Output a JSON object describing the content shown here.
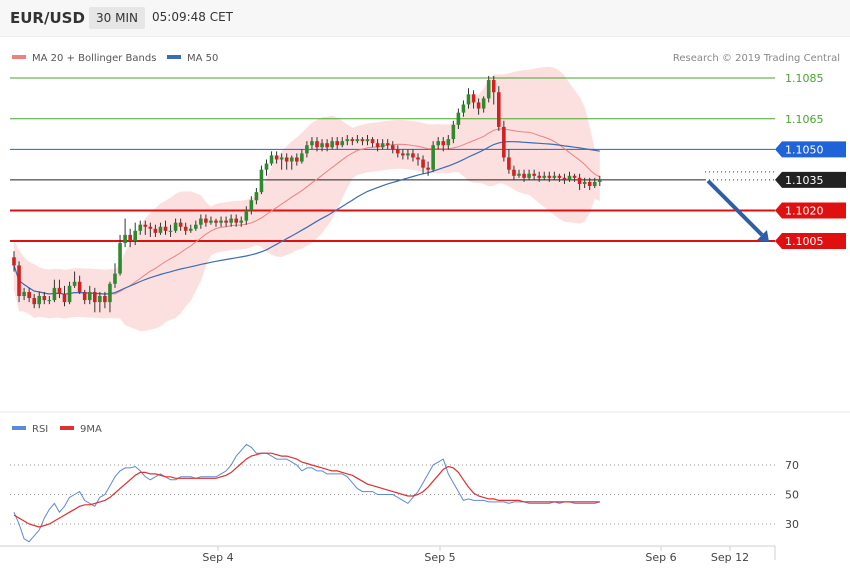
{
  "header": {
    "symbol": "EUR/USD",
    "timeframe": "30 MIN",
    "time": "05:09:48 CET"
  },
  "credit": "Research © 2019 Trading Central",
  "chart_data": [
    {
      "type": "candlestick",
      "legend": [
        {
          "name": "MA 20 + Bollinger Bands",
          "color": "#f08080"
        },
        {
          "name": "MA 50",
          "color": "#3b6db3"
        }
      ],
      "legend_placement": "top-left",
      "y_range": [
        1.097,
        1.109
      ],
      "grid": false,
      "levels": [
        {
          "value": 1.1085,
          "label": "1.1085",
          "color": "#4aa52e",
          "style": "plain"
        },
        {
          "value": 1.1065,
          "label": "1.1065",
          "color": "#4aa52e",
          "style": "plain"
        },
        {
          "value": 1.105,
          "label": "1.1050",
          "color": "#1e63d8",
          "style": "badge"
        },
        {
          "value": 1.1035,
          "label": "1.1035",
          "color": "#222222",
          "style": "badge"
        },
        {
          "value": 1.102,
          "label": "1.1020",
          "color": "#e01010",
          "style": "badge"
        },
        {
          "value": 1.1005,
          "label": "1.1005",
          "color": "#e01010",
          "style": "badge"
        }
      ],
      "x_ticks": [
        "Sep 4",
        "Sep 5",
        "Sep 6",
        "Sep 12"
      ],
      "candles": [
        [
          1.0997,
          1.0993,
          1.1,
          1.099
        ],
        [
          1.0993,
          1.0978,
          1.0995,
          1.0975
        ],
        [
          1.0978,
          1.098,
          1.0982,
          1.0976
        ],
        [
          1.098,
          1.0977,
          1.0982,
          1.0975
        ],
        [
          1.0977,
          1.0974,
          1.0979,
          1.0972
        ],
        [
          1.0974,
          1.0978,
          1.098,
          1.0972
        ],
        [
          1.0978,
          1.0976,
          1.098,
          1.0974
        ],
        [
          1.0976,
          1.0976,
          1.0978,
          1.0974
        ],
        [
          1.0976,
          1.0982,
          1.0986,
          1.0975
        ],
        [
          1.0982,
          1.0979,
          1.0986,
          1.0977
        ],
        [
          1.0979,
          1.0975,
          1.0983,
          1.0973
        ],
        [
          1.0975,
          1.0983,
          1.0985,
          1.0974
        ],
        [
          1.0983,
          1.0985,
          1.099,
          1.0982
        ],
        [
          1.0985,
          1.098,
          1.0988,
          1.0979
        ],
        [
          1.098,
          1.0976,
          1.0981,
          1.0974
        ],
        [
          1.0976,
          1.098,
          1.0983,
          1.0974
        ],
        [
          1.098,
          1.0975,
          1.0982,
          1.097
        ],
        [
          1.0975,
          1.0978,
          1.098,
          1.097
        ],
        [
          1.0978,
          1.0975,
          1.098,
          1.0972
        ],
        [
          1.0975,
          1.0984,
          1.0985,
          1.097
        ],
        [
          1.0984,
          1.0989,
          1.0994,
          1.0982
        ],
        [
          1.0989,
          1.1004,
          1.1008,
          1.0988
        ],
        [
          1.1004,
          1.1008,
          1.1016,
          1.1002
        ],
        [
          1.1008,
          1.1005,
          1.1011,
          1.1002
        ],
        [
          1.1005,
          1.101,
          1.1014,
          1.1003
        ],
        [
          1.101,
          1.1013,
          1.1015,
          1.1008
        ],
        [
          1.1013,
          1.1012,
          1.1015,
          1.1008
        ],
        [
          1.1012,
          1.1011,
          1.1014,
          1.1007
        ],
        [
          1.1011,
          1.1009,
          1.1013,
          1.1007
        ],
        [
          1.1009,
          1.1012,
          1.1014,
          1.1008
        ],
        [
          1.1012,
          1.101,
          1.1015,
          1.1008
        ],
        [
          1.101,
          1.101,
          1.1013,
          1.1007
        ],
        [
          1.101,
          1.1014,
          1.1016,
          1.1009
        ],
        [
          1.1014,
          1.1012,
          1.1016,
          1.101
        ],
        [
          1.1012,
          1.101,
          1.1014,
          1.1008
        ],
        [
          1.101,
          1.1011,
          1.1013,
          1.1009
        ],
        [
          1.1011,
          1.1013,
          1.1015,
          1.101
        ],
        [
          1.1013,
          1.1016,
          1.1018,
          1.1011
        ],
        [
          1.1016,
          1.1014,
          1.1018,
          1.1012
        ],
        [
          1.1014,
          1.1015,
          1.1017,
          1.1013
        ],
        [
          1.1015,
          1.1014,
          1.1016,
          1.1012
        ],
        [
          1.1014,
          1.1015,
          1.1017,
          1.1012
        ],
        [
          1.1015,
          1.1014,
          1.1017,
          1.1012
        ],
        [
          1.1014,
          1.1016,
          1.1018,
          1.1012
        ],
        [
          1.1016,
          1.1014,
          1.1018,
          1.1012
        ],
        [
          1.1014,
          1.1015,
          1.1017,
          1.1012
        ],
        [
          1.1015,
          1.102,
          1.1022,
          1.1013
        ],
        [
          1.102,
          1.1025,
          1.1027,
          1.1018
        ],
        [
          1.1025,
          1.1029,
          1.1031,
          1.1023
        ],
        [
          1.1029,
          1.104,
          1.1042,
          1.1028
        ],
        [
          1.104,
          1.1043,
          1.1045,
          1.1037
        ],
        [
          1.1043,
          1.1047,
          1.1049,
          1.1042
        ],
        [
          1.1047,
          1.1045,
          1.1049,
          1.1043
        ],
        [
          1.1045,
          1.1046,
          1.1048,
          1.104
        ],
        [
          1.1046,
          1.1044,
          1.1048,
          1.104
        ],
        [
          1.1044,
          1.1046,
          1.1047,
          1.104
        ],
        [
          1.1046,
          1.1044,
          1.1048,
          1.1042
        ],
        [
          1.1044,
          1.1048,
          1.105,
          1.1043
        ],
        [
          1.1048,
          1.1052,
          1.1054,
          1.1046
        ],
        [
          1.1052,
          1.1054,
          1.1056,
          1.105
        ],
        [
          1.1054,
          1.1051,
          1.1056,
          1.1049
        ],
        [
          1.1051,
          1.1053,
          1.1055,
          1.1049
        ],
        [
          1.1053,
          1.1051,
          1.1055,
          1.1049
        ],
        [
          1.1051,
          1.1054,
          1.1056,
          1.105
        ],
        [
          1.1054,
          1.1052,
          1.1056,
          1.105
        ],
        [
          1.1052,
          1.1054,
          1.1056,
          1.1051
        ],
        [
          1.1054,
          1.1055,
          1.1057,
          1.1052
        ],
        [
          1.1055,
          1.1054,
          1.1056,
          1.1052
        ],
        [
          1.1054,
          1.1055,
          1.1057,
          1.1053
        ],
        [
          1.1055,
          1.1054,
          1.1056,
          1.1052
        ],
        [
          1.1054,
          1.1055,
          1.1057,
          1.1052
        ],
        [
          1.1055,
          1.1053,
          1.1056,
          1.1051
        ],
        [
          1.1053,
          1.1051,
          1.1055,
          1.1049
        ],
        [
          1.1051,
          1.1053,
          1.1055,
          1.105
        ],
        [
          1.1053,
          1.1052,
          1.1055,
          1.105
        ],
        [
          1.1052,
          1.105,
          1.1054,
          1.1048
        ],
        [
          1.105,
          1.1048,
          1.1052,
          1.1046
        ],
        [
          1.1048,
          1.1047,
          1.105,
          1.1045
        ],
        [
          1.1047,
          1.1048,
          1.105,
          1.1045
        ],
        [
          1.1048,
          1.1046,
          1.105,
          1.1044
        ],
        [
          1.1046,
          1.1045,
          1.1048,
          1.1042
        ],
        [
          1.1045,
          1.1041,
          1.1047,
          1.1038
        ],
        [
          1.1041,
          1.104,
          1.1044,
          1.1037
        ],
        [
          1.104,
          1.1052,
          1.1054,
          1.1039
        ],
        [
          1.1052,
          1.1054,
          1.1056,
          1.105
        ],
        [
          1.1054,
          1.1052,
          1.1056,
          1.1049
        ],
        [
          1.1052,
          1.1055,
          1.1057,
          1.105
        ],
        [
          1.1055,
          1.1062,
          1.1064,
          1.1053
        ],
        [
          1.1062,
          1.1068,
          1.107,
          1.106
        ],
        [
          1.1068,
          1.1072,
          1.1074,
          1.1066
        ],
        [
          1.1072,
          1.1077,
          1.108,
          1.107
        ],
        [
          1.1077,
          1.1073,
          1.1079,
          1.107
        ],
        [
          1.1073,
          1.107,
          1.1075,
          1.1067
        ],
        [
          1.107,
          1.1075,
          1.1076,
          1.1068
        ],
        [
          1.1075,
          1.1084,
          1.1086,
          1.1073
        ],
        [
          1.1084,
          1.1078,
          1.1086,
          1.1072
        ],
        [
          1.1078,
          1.1061,
          1.1081,
          1.1059
        ],
        [
          1.1061,
          1.1046,
          1.1064,
          1.1044
        ],
        [
          1.1046,
          1.104,
          1.105,
          1.1038
        ],
        [
          1.104,
          1.1037,
          1.1042,
          1.1035
        ],
        [
          1.1037,
          1.1038,
          1.104,
          1.1036
        ],
        [
          1.1038,
          1.1036,
          1.104,
          1.1034
        ],
        [
          1.1036,
          1.1038,
          1.104,
          1.1035
        ],
        [
          1.1038,
          1.1037,
          1.104,
          1.1035
        ],
        [
          1.1037,
          1.1036,
          1.1039,
          1.1034
        ],
        [
          1.1036,
          1.1037,
          1.1039,
          1.1035
        ],
        [
          1.1037,
          1.1036,
          1.1039,
          1.1034
        ],
        [
          1.1036,
          1.1037,
          1.1039,
          1.1035
        ],
        [
          1.1037,
          1.1036,
          1.1038,
          1.1034
        ],
        [
          1.1036,
          1.1035,
          1.1038,
          1.1033
        ],
        [
          1.1035,
          1.1037,
          1.1039,
          1.1034
        ],
        [
          1.1037,
          1.1036,
          1.1038,
          1.1034
        ],
        [
          1.1036,
          1.1033,
          1.1038,
          1.103
        ],
        [
          1.1033,
          1.1034,
          1.1036,
          1.1031
        ],
        [
          1.1034,
          1.1032,
          1.1036,
          1.103
        ],
        [
          1.1032,
          1.1034,
          1.1036,
          1.1031
        ],
        [
          1.1034,
          1.1035,
          1.1037,
          1.1032
        ]
      ],
      "projection": {
        "from": 1.1035,
        "to": 1.1005
      }
    },
    {
      "type": "line",
      "legend": [
        {
          "name": "RSI",
          "color": "#5b8ad8"
        },
        {
          "name": "9MA",
          "color": "#e03030"
        }
      ],
      "y_range": [
        15,
        90
      ],
      "y_ticks": [
        70,
        50,
        30
      ],
      "series": [
        {
          "name": "RSI",
          "values": [
            38,
            30,
            20,
            18,
            22,
            26,
            34,
            40,
            44,
            38,
            42,
            48,
            50,
            52,
            46,
            44,
            42,
            48,
            50,
            56,
            62,
            66,
            68,
            68,
            69,
            66,
            62,
            60,
            62,
            64,
            62,
            60,
            60,
            62,
            62,
            62,
            61,
            62,
            62,
            62,
            62,
            64,
            66,
            70,
            76,
            80,
            84,
            82,
            78,
            78,
            78,
            76,
            74,
            74,
            74,
            72,
            70,
            66,
            68,
            68,
            66,
            66,
            64,
            64,
            64,
            64,
            62,
            58,
            54,
            52,
            52,
            52,
            50,
            50,
            50,
            50,
            48,
            46,
            44,
            48,
            52,
            58,
            64,
            70,
            72,
            74,
            64,
            58,
            52,
            46,
            47,
            46,
            46,
            46,
            45,
            45,
            45,
            45,
            44,
            45,
            45,
            45,
            44,
            44,
            44,
            44,
            44,
            45,
            44,
            45,
            45,
            44,
            44,
            44,
            44,
            44,
            45
          ]
        },
        {
          "name": "9MA",
          "values": [
            36,
            34,
            32,
            30,
            29,
            28,
            29,
            30,
            32,
            34,
            36,
            38,
            40,
            42,
            43,
            43,
            44,
            45,
            46,
            48,
            51,
            54,
            57,
            60,
            63,
            65,
            65,
            64,
            64,
            63,
            62,
            62,
            61,
            61,
            61,
            61,
            61,
            61,
            61,
            61,
            61,
            62,
            63,
            65,
            68,
            71,
            74,
            76,
            77,
            78,
            78,
            78,
            77,
            76,
            76,
            75,
            74,
            72,
            71,
            70,
            69,
            68,
            67,
            66,
            66,
            65,
            64,
            63,
            61,
            59,
            57,
            56,
            55,
            54,
            53,
            52,
            51,
            50,
            49,
            49,
            50,
            52,
            55,
            59,
            63,
            67,
            69,
            68,
            65,
            60,
            55,
            51,
            49,
            48,
            47,
            47,
            46,
            46,
            46,
            46,
            46,
            45,
            45,
            45,
            45,
            45,
            45,
            45,
            45,
            45,
            45,
            45,
            45,
            45,
            45,
            45,
            45
          ]
        }
      ]
    }
  ]
}
